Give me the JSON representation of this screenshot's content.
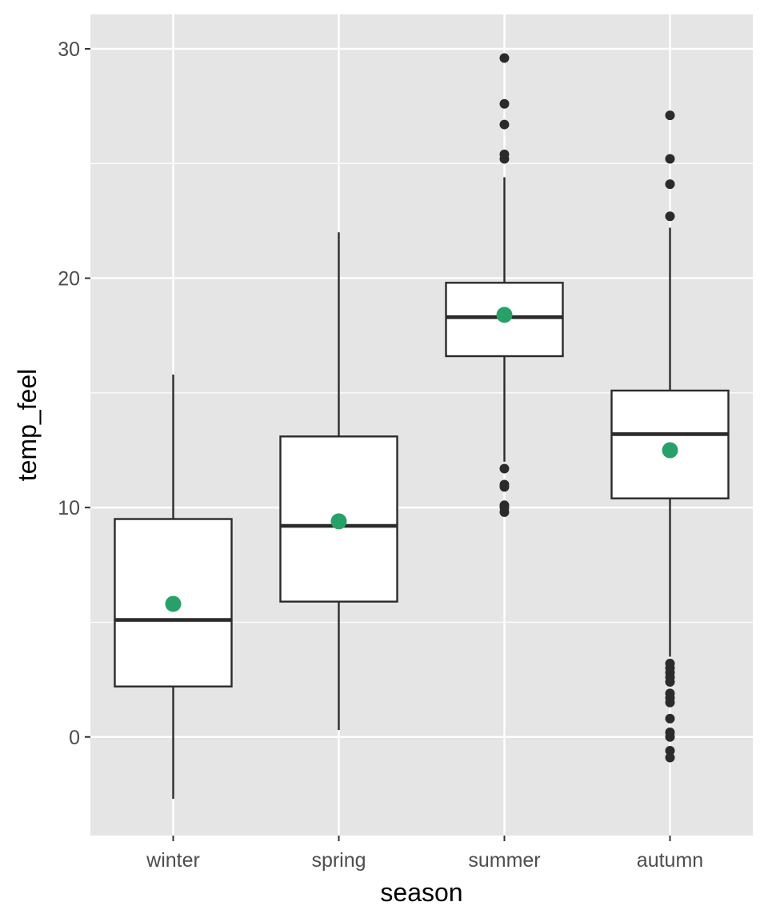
{
  "chart_data": {
    "type": "boxplot",
    "title": "",
    "xlabel": "season",
    "ylabel": "temp_feel",
    "ylim": [
      -4.3,
      31.5
    ],
    "y_ticks": [
      0,
      10,
      20,
      30
    ],
    "y_minor_ticks": [
      5,
      15,
      25
    ],
    "grid": true,
    "legend": "none",
    "colors": {
      "panel": "#e5e5e5",
      "grid": "#ffffff",
      "box_fill": "#ffffff",
      "box_line": "#2b2b2b",
      "mean_point": "#26a269"
    },
    "categories": [
      "winter",
      "spring",
      "summer",
      "autumn"
    ],
    "series": [
      {
        "category": "winter",
        "whisker_low": -2.7,
        "q1": 2.2,
        "median": 5.1,
        "q3": 9.5,
        "whisker_high": 15.8,
        "mean": 5.8,
        "outliers": []
      },
      {
        "category": "spring",
        "whisker_low": 0.3,
        "q1": 5.9,
        "median": 9.2,
        "q3": 13.1,
        "whisker_high": 22.0,
        "mean": 9.4,
        "outliers": []
      },
      {
        "category": "summer",
        "whisker_low": 12.0,
        "q1": 16.6,
        "median": 18.3,
        "q3": 19.8,
        "whisker_high": 24.4,
        "mean": 18.4,
        "outliers": [
          9.8,
          10.0,
          10.1,
          10.9,
          11.0,
          11.7,
          25.2,
          25.4,
          26.7,
          27.6,
          29.6
        ]
      },
      {
        "category": "autumn",
        "whisker_low": 3.5,
        "q1": 10.4,
        "median": 13.2,
        "q3": 15.1,
        "whisker_high": 22.2,
        "mean": 12.5,
        "outliers": [
          -0.9,
          -0.6,
          0.0,
          0.2,
          0.8,
          1.5,
          1.7,
          1.9,
          2.4,
          2.6,
          2.8,
          3.0,
          3.2,
          22.7,
          24.1,
          25.2,
          27.1
        ]
      }
    ]
  }
}
